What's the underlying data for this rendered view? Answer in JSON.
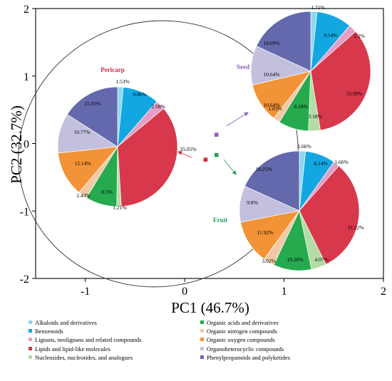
{
  "chart_data": {
    "type": "pie",
    "xlabel": "PC1 (46.7%)",
    "ylabel": "PC2 (32.7%)",
    "xlim": [
      -1.5,
      2
    ],
    "ylim": [
      -2,
      2
    ],
    "xticks": [
      "-1",
      "0",
      "1",
      "2"
    ],
    "yticks": [
      "-2",
      "-1",
      "0",
      "1",
      "2"
    ],
    "scores": [
      {
        "name": "Pericarp",
        "x": 0.21,
        "y": -0.24,
        "color": "#d7263d"
      },
      {
        "name": "Seed",
        "x": 0.32,
        "y": 0.13,
        "color": "#8a5fc2"
      },
      {
        "name": "Fruit",
        "x": 0.32,
        "y": -0.17,
        "color": "#23a35a"
      }
    ],
    "categories": [
      "Alkaloids and  derivatives",
      "Benzenoids",
      "Lignans, neolignans and related compounds",
      "Lipids and lipid-like molecules",
      "Nucleosides, nucleotides, and analogues",
      "Organic acids and derivatives",
      "Organic nitrogen compounds",
      "Organic oxygen compounds",
      "Organoheterocyclic compounds",
      "Phenylpropanoids and polyketides"
    ],
    "category_colors": [
      "#8ed8ee",
      "#13a7e2",
      "#e59ec5",
      "#d7384b",
      "#b4dca5",
      "#26aa4e",
      "#f1c9a4",
      "#f19336",
      "#c3c0dd",
      "#6468ad"
    ],
    "pie_order": [
      0,
      1,
      2,
      3,
      4,
      5,
      6,
      7,
      8,
      9
    ],
    "series": [
      {
        "name": "Pericarp",
        "values": [
          1.53,
          9.86,
          2.58,
          35.05,
          1.21,
          8.5,
          2.43,
          12.14,
          10.77,
          15.93
        ],
        "labels": [
          "1.53%",
          "9.86%",
          "2.58%",
          "35.05%",
          "1.21%",
          "8.5%",
          "2.43%",
          "12.14%",
          "10.77%",
          "15.93%"
        ]
      },
      {
        "name": "Seed",
        "values": [
          1.71,
          9.54,
          2.2,
          33.99,
          3.18,
          8.18,
          1.83,
          10.64,
          10.64,
          18.09
        ],
        "labels": [
          "1.71%",
          "9.54%",
          "2.2%",
          "33.99%",
          "3.18%",
          "8.18%",
          "1.83%",
          "10.64%",
          "10.64%",
          "18.09%"
        ]
      },
      {
        "name": "Fruit",
        "values": [
          1.66,
          8.14,
          1.66,
          31.22,
          4.07,
          10.26,
          3.02,
          11.92,
          9.8,
          18.25
        ],
        "labels": [
          "1.66%",
          "8.14%",
          "1.66%",
          "31.22%",
          "4.07%",
          "10.26%",
          "3.02%",
          "11.92%",
          "9.8%",
          "18.25%"
        ]
      }
    ],
    "legend_placement": "bottom",
    "grid": false
  }
}
